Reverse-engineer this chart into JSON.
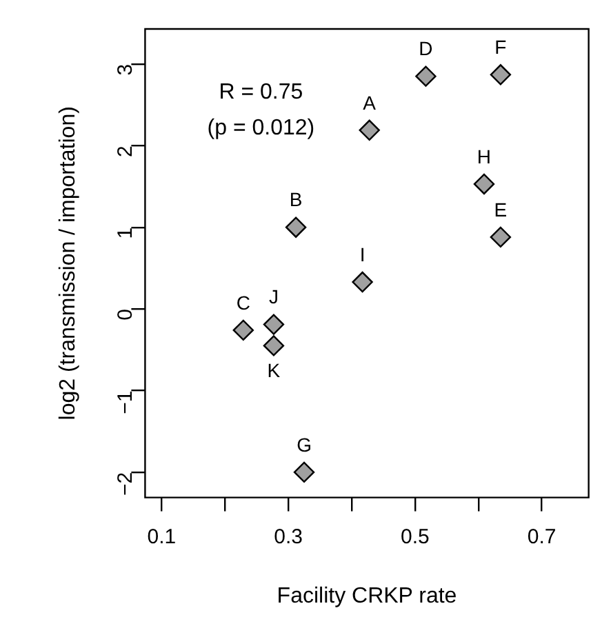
{
  "chart_data": {
    "type": "scatter",
    "xlabel": "Facility CRKP rate",
    "ylabel": "log2 (transmission / importation)",
    "x": [
      0.428,
      0.312,
      0.229,
      0.517,
      0.635,
      0.635,
      0.325,
      0.609,
      0.417,
      0.277,
      0.277
    ],
    "series": [
      {
        "color": "#a0a0a0",
        "values": [
          2.19,
          1.0,
          -0.26,
          2.85,
          0.88,
          2.87,
          -2.0,
          1.53,
          0.33,
          -0.19,
          -0.45
        ]
      }
    ],
    "marker": "diamond",
    "grid": false,
    "legend": false,
    "xlim": [
      0.074,
      0.774
    ],
    "ylim": [
      -2.31,
      3.43
    ],
    "xticks": [
      0.1,
      {
        "value": 0.2,
        "label": null
      },
      0.3,
      {
        "value": 0.4,
        "label": null
      },
      0.5,
      {
        "value": 0.6,
        "label": null
      },
      0.7
    ],
    "yticks": [
      -2,
      -1,
      0,
      1,
      2,
      3
    ],
    "annotations": [
      "R = 0.75",
      "(p = 0.012)",
      {
        "text": "A",
        "x": 0.428,
        "y": 2.19
      },
      {
        "text": "B",
        "x": 0.312,
        "y": 1.0
      },
      {
        "text": "C",
        "x": 0.229,
        "y": -0.26
      },
      {
        "text": "D",
        "x": 0.517,
        "y": 2.85
      },
      {
        "text": "E",
        "x": 0.635,
        "y": 0.88
      },
      {
        "text": "F",
        "x": 0.635,
        "y": 2.87
      },
      {
        "text": "G",
        "x": 0.325,
        "y": -2.0
      },
      {
        "text": "H",
        "x": 0.609,
        "y": 1.53
      },
      {
        "text": "I",
        "x": 0.417,
        "y": 0.33
      },
      {
        "text": "J",
        "x": 0.277,
        "y": -0.19
      },
      {
        "text": "K",
        "x": 0.277,
        "y": -0.45
      }
    ]
  }
}
